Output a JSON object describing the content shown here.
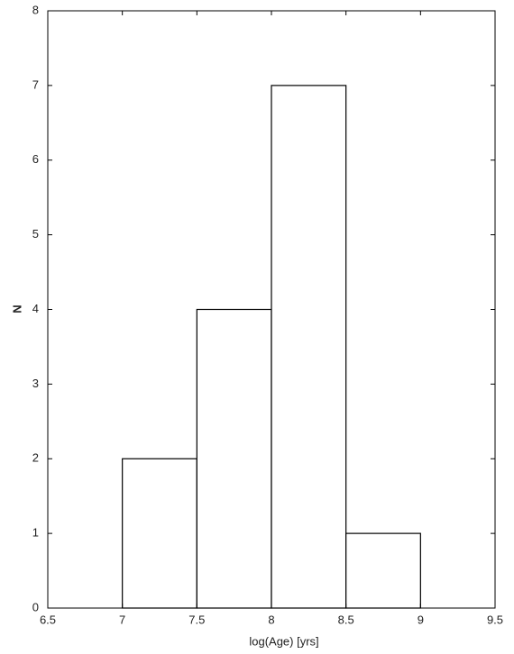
{
  "chart_data": {
    "type": "histogram",
    "x_label": "log(Age) [yrs]",
    "y_label": "N",
    "bins": [
      7,
      7.5,
      8,
      8.5,
      9
    ],
    "values": [
      2,
      4,
      7,
      1
    ],
    "color": "#ffffff",
    "edgecolor": "#000000",
    "xlim": [
      6.5,
      9.5
    ],
    "xticks": [
      6.5,
      7,
      7.5,
      8,
      8.5,
      9,
      9.5
    ],
    "ylim": [
      0,
      8
    ],
    "yticks": [
      0,
      1,
      2,
      3,
      4,
      5,
      6,
      7,
      8
    ]
  }
}
